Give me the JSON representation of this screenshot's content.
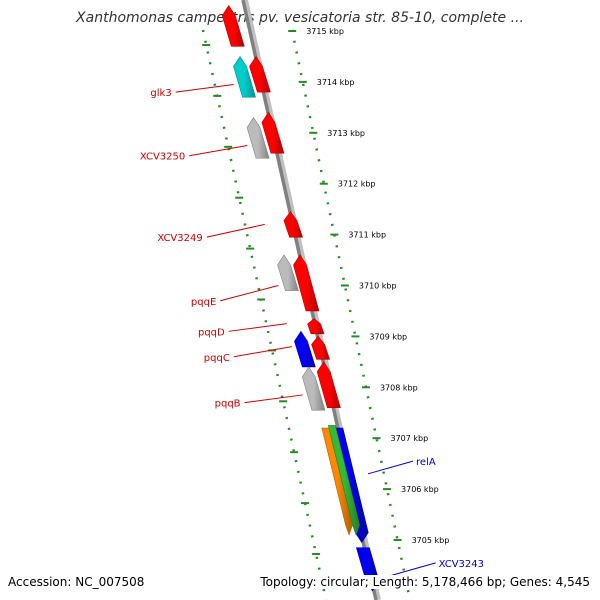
{
  "title": "Xanthomonas campestris pv. vesicatoria str. 85-10, complete ...",
  "footer": {
    "accession": "Accession: NC_007508",
    "summary": "Topology: circular; Length: 5,178,466 bp; Genes: 4,545"
  },
  "colors": {
    "backbone": "#808080",
    "ruler": "#228B22",
    "forward_label": "#cc0000",
    "reverse_label": "#0000cc"
  },
  "chart_data": {
    "type": "genome-map",
    "scale_unit": "kbp",
    "scale_direction": "decreasing downward",
    "ticks": [
      {
        "pos": 3715,
        "label": "3715 kbp"
      },
      {
        "pos": 3714,
        "label": "3714 kbp"
      },
      {
        "pos": 3713,
        "label": "3713 kbp"
      },
      {
        "pos": 3712,
        "label": "3712 kbp"
      },
      {
        "pos": 3711,
        "label": "3711 kbp"
      },
      {
        "pos": 3710,
        "label": "3710 kbp"
      },
      {
        "pos": 3709,
        "label": "3709 kbp"
      },
      {
        "pos": 3708,
        "label": "3708 kbp"
      },
      {
        "pos": 3707,
        "label": "3707 kbp"
      },
      {
        "pos": 3706,
        "label": "3706 kbp"
      },
      {
        "pos": 3705,
        "label": "3705 kbp"
      }
    ],
    "genes": [
      {
        "lane": "fwd-cds",
        "start": 3714.7,
        "end": 3715.5,
        "color": "#ff0000"
      },
      {
        "lane": "fwd-gene",
        "start": 3713.8,
        "end": 3714.5,
        "color": "#ff0000"
      },
      {
        "lane": "fwd-gene",
        "start": 3712.6,
        "end": 3713.4,
        "color": "#ff0000"
      },
      {
        "lane": "fwd-gene",
        "start": 3710.95,
        "end": 3711.45,
        "color": "#ff0000"
      },
      {
        "lane": "fwd-gene",
        "start": 3709.5,
        "end": 3710.6,
        "color": "#ff0000"
      },
      {
        "lane": "fwd-gene",
        "start": 3709.05,
        "end": 3709.35,
        "color": "#ff0000"
      },
      {
        "lane": "fwd-gene",
        "start": 3708.55,
        "end": 3709.0,
        "color": "#ff0000"
      },
      {
        "lane": "fwd-gene",
        "start": 3707.6,
        "end": 3708.5,
        "color": "#ff0000"
      },
      {
        "lane": "fwd-cds",
        "start": 3713.7,
        "end": 3714.5,
        "color": "#00cccc",
        "label": "glk3"
      },
      {
        "lane": "fwd-cds",
        "start": 3712.5,
        "end": 3713.3,
        "color": "#bbbbbb",
        "label": "XCV3250"
      },
      {
        "lane": "fwd-cds",
        "start": 3709.9,
        "end": 3710.6,
        "color": "#bbbbbb",
        "label": "pqqE"
      },
      {
        "lane": "fwd-cds",
        "start": 3708.4,
        "end": 3709.1,
        "color": "#0000ee",
        "label": "pqqC"
      },
      {
        "lane": "fwd-cds",
        "start": 3707.55,
        "end": 3708.4,
        "color": "#bbbbbb",
        "label": "pqqB"
      },
      {
        "lane": "rev-cds",
        "start": 3704.95,
        "end": 3707.2,
        "color": "#0000ee"
      },
      {
        "lane": "rev-gene",
        "start": 3705.1,
        "end": 3707.2,
        "color": "#ff8800"
      },
      {
        "lane": "rev-gene2",
        "start": 3705.1,
        "end": 3707.25,
        "color": "#33bb33"
      },
      {
        "lane": "rev-cds",
        "start": 3704.0,
        "end": 3704.85,
        "color": "#0000ee"
      }
    ],
    "labels": [
      {
        "text": "glk3",
        "side": "left",
        "anchor_pos": 3713.95,
        "pos": 3713.8,
        "color": "#cc0000"
      },
      {
        "text": "XCV3250",
        "side": "left",
        "anchor_pos": 3712.75,
        "pos": 3712.55,
        "color": "#cc0000"
      },
      {
        "text": "XCV3249",
        "side": "left",
        "anchor_pos": 3711.2,
        "pos": 3710.95,
        "color": "#cc0000"
      },
      {
        "text": "pqqE",
        "side": "left",
        "anchor_pos": 3710.0,
        "pos": 3709.7,
        "color": "#cc0000"
      },
      {
        "text": "pqqD",
        "side": "left",
        "anchor_pos": 3709.25,
        "pos": 3709.1,
        "color": "#cc0000"
      },
      {
        "text": "pqqC",
        "side": "left",
        "anchor_pos": 3708.8,
        "pos": 3708.6,
        "color": "#cc0000"
      },
      {
        "text": "pqqB",
        "side": "left",
        "anchor_pos": 3707.85,
        "pos": 3707.7,
        "color": "#cc0000"
      },
      {
        "text": "relA",
        "side": "right",
        "anchor_pos": 3706.3,
        "pos": 3706.55,
        "color": "#0000cc"
      },
      {
        "text": "XCV3243",
        "side": "right",
        "anchor_pos": 3704.3,
        "pos": 3704.55,
        "color": "#0000cc"
      }
    ]
  }
}
